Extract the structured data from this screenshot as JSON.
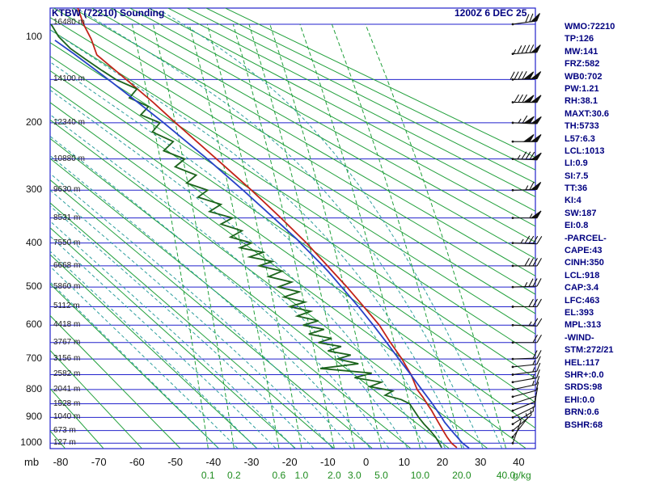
{
  "header": {
    "title": "KTBW (72210) Sounding",
    "datetime": "1200Z 6 DEC 25"
  },
  "stats_panel": {
    "lines": [
      "WMO:72210",
      "TP:126",
      "MW:141",
      "FRZ:582",
      "WB0:702",
      "PW:1.21",
      "RH:38.1",
      "MAXT:30.6",
      "TH:5733",
      "L57:6.3",
      "LCL:1013",
      "LI:0.9",
      "SI:7.5",
      "TT:36",
      "KI:4",
      "SW:187",
      "EI:0.8",
      "-PARCEL-",
      "CAPE:43",
      "CINH:350",
      "LCL:918",
      "CAP:3.4",
      "LFC:463",
      "EL:393",
      "MPL:313",
      "-WIND-",
      "STM:272/21",
      "HEL:117",
      "SHR+:0.0",
      "SRDS:98",
      "EHI:0.0",
      "BRN:0.6",
      "BSHR:68"
    ]
  },
  "axis_labels": {
    "pressure_unit": "mb",
    "mixing_unit": "g/kg"
  },
  "chart_data": {
    "type": "line",
    "diagram": "stuve-sounding",
    "title": "KTBW (72210) Sounding",
    "time": "1200Z 6 DEC 25",
    "axes": {
      "pressure_ticks_mb": [
        100,
        200,
        300,
        400,
        500,
        600,
        700,
        800,
        900,
        1000
      ],
      "pressure_gridlines_mb": [
        100,
        150,
        200,
        250,
        300,
        350,
        400,
        450,
        500,
        550,
        600,
        650,
        700,
        750,
        800,
        850,
        900,
        950,
        1000
      ],
      "temp_ticks_c": [
        -80,
        -70,
        -60,
        -50,
        -40,
        -30,
        -20,
        -10,
        0,
        10,
        20,
        30,
        40
      ],
      "pressure_range_mb": [
        87,
        1020
      ],
      "temp_range_c": [
        -83,
        44
      ],
      "heights": [
        {
          "p": 100,
          "label": "16480 m"
        },
        {
          "p": 150,
          "label": "14100 m"
        },
        {
          "p": 200,
          "label": "12340 m"
        },
        {
          "p": 250,
          "label": "10880 m"
        },
        {
          "p": 300,
          "label": "9630 m"
        },
        {
          "p": 350,
          "label": "8531 m"
        },
        {
          "p": 400,
          "label": "7550 m"
        },
        {
          "p": 450,
          "label": "6668 m"
        },
        {
          "p": 500,
          "label": "5860 m"
        },
        {
          "p": 550,
          "label": "5112 m"
        },
        {
          "p": 600,
          "label": "4418 m"
        },
        {
          "p": 650,
          "label": "3767 m"
        },
        {
          "p": 700,
          "label": "3156 m"
        },
        {
          "p": 750,
          "label": "2582 m"
        },
        {
          "p": 800,
          "label": "2041 m"
        },
        {
          "p": 850,
          "label": "1528 m"
        },
        {
          "p": 900,
          "label": "1040 m"
        },
        {
          "p": 950,
          "label": "673 m"
        },
        {
          "p": 1000,
          "label": "127 m"
        }
      ],
      "mixing_ratio_labels": [
        0.1,
        0.2,
        0.6,
        1.0,
        2.0,
        3.0,
        5.0,
        10.0,
        20.0,
        40.0
      ]
    },
    "isopleths": {
      "dry_adiabats_c": [
        -80,
        -70,
        -60,
        -50,
        -40,
        -30,
        -20,
        -10,
        0,
        10,
        20,
        30,
        40,
        50,
        60,
        70,
        80,
        90,
        100,
        110,
        120,
        130,
        140,
        150,
        160,
        170,
        180,
        190,
        200
      ],
      "moist_adiabats_c": [
        -40,
        -35,
        -30,
        -25,
        -20,
        -15,
        -10,
        -5,
        0,
        5,
        10,
        15,
        20,
        25,
        30,
        35
      ],
      "mixing_ratios_gkg": [
        0.1,
        0.2,
        0.6,
        1.0,
        2.0,
        3.0,
        5.0,
        10.0,
        20.0,
        40.0
      ]
    },
    "series": [
      {
        "name": "temperature",
        "color": "#c22218",
        "points": [
          [
            1018,
            23.8
          ],
          [
            1000,
            22.4
          ],
          [
            975,
            21.2
          ],
          [
            950,
            20.2
          ],
          [
            925,
            19.2
          ],
          [
            900,
            18.2
          ],
          [
            875,
            17.2
          ],
          [
            850,
            16.0
          ],
          [
            825,
            14.8
          ],
          [
            800,
            13.4
          ],
          [
            775,
            12.6
          ],
          [
            750,
            11.8
          ],
          [
            725,
            10.6
          ],
          [
            700,
            9.4
          ],
          [
            650,
            6.4
          ],
          [
            600,
            3.5
          ],
          [
            550,
            -0.6
          ],
          [
            500,
            -5.0
          ],
          [
            450,
            -10.1
          ],
          [
            400,
            -15.6
          ],
          [
            350,
            -22.3
          ],
          [
            300,
            -30.0
          ],
          [
            250,
            -39.2
          ],
          [
            200,
            -49.9
          ],
          [
            175,
            -55.8
          ],
          [
            150,
            -62.8
          ],
          [
            126,
            -70.5
          ],
          [
            112,
            -72.0
          ],
          [
            100,
            -74.0
          ],
          [
            88,
            -75.5
          ]
        ]
      },
      {
        "name": "dewpoint",
        "color": "#1c641c",
        "points": [
          [
            1018,
            19.8
          ],
          [
            1000,
            19.2
          ],
          [
            975,
            18.2
          ],
          [
            950,
            16.8
          ],
          [
            925,
            15.2
          ],
          [
            900,
            13.8
          ],
          [
            875,
            12.6
          ],
          [
            850,
            11.4
          ],
          [
            835,
            9.2
          ],
          [
            820,
            5.0
          ],
          [
            805,
            7.0
          ],
          [
            790,
            1.0
          ],
          [
            775,
            4.0
          ],
          [
            760,
            -3.0
          ],
          [
            745,
            1.5
          ],
          [
            730,
            -12.0
          ],
          [
            715,
            -2.0
          ],
          [
            700,
            -7.5
          ],
          [
            688,
            -4.0
          ],
          [
            675,
            -10.0
          ],
          [
            662,
            -6.5
          ],
          [
            650,
            -12.5
          ],
          [
            638,
            -9.0
          ],
          [
            625,
            -15.0
          ],
          [
            612,
            -11.0
          ],
          [
            600,
            -16.5
          ],
          [
            588,
            -12.5
          ],
          [
            575,
            -18.0
          ],
          [
            562,
            -14.5
          ],
          [
            550,
            -20.0
          ],
          [
            538,
            -16.0
          ],
          [
            525,
            -21.5
          ],
          [
            512,
            -17.5
          ],
          [
            500,
            -23.0
          ],
          [
            488,
            -19.5
          ],
          [
            475,
            -25.5
          ],
          [
            462,
            -22.0
          ],
          [
            450,
            -28.0
          ],
          [
            440,
            -24.5
          ],
          [
            430,
            -30.5
          ],
          [
            420,
            -27.0
          ],
          [
            410,
            -33.0
          ],
          [
            400,
            -30.0
          ],
          [
            388,
            -35.5
          ],
          [
            375,
            -32.5
          ],
          [
            362,
            -38.0
          ],
          [
            350,
            -35.0
          ],
          [
            338,
            -41.0
          ],
          [
            325,
            -38.0
          ],
          [
            312,
            -44.0
          ],
          [
            300,
            -41.5
          ],
          [
            288,
            -47.0
          ],
          [
            275,
            -44.5
          ],
          [
            262,
            -50.0
          ],
          [
            250,
            -47.5
          ],
          [
            238,
            -53.0
          ],
          [
            225,
            -50.5
          ],
          [
            212,
            -56.0
          ],
          [
            200,
            -54.0
          ],
          [
            190,
            -59.0
          ],
          [
            180,
            -57.0
          ],
          [
            170,
            -62.0
          ],
          [
            160,
            -60.0
          ],
          [
            150,
            -65.5
          ],
          [
            140,
            -69.5
          ],
          [
            130,
            -73.5
          ],
          [
            120,
            -77.5
          ],
          [
            110,
            -80.5
          ],
          [
            100,
            -82.5
          ]
        ]
      },
      {
        "name": "parcel",
        "color": "#2742c8",
        "points": [
          [
            1020,
            27.0
          ],
          [
            1000,
            25.3
          ],
          [
            950,
            22.4
          ],
          [
            918,
            20.6
          ],
          [
            900,
            19.8
          ],
          [
            850,
            17.4
          ],
          [
            800,
            14.6
          ],
          [
            750,
            11.7
          ],
          [
            700,
            8.6
          ],
          [
            650,
            5.4
          ],
          [
            600,
            1.9
          ],
          [
            550,
            -2.0
          ],
          [
            500,
            -6.4
          ],
          [
            463,
            -9.9
          ],
          [
            450,
            -11.3
          ],
          [
            400,
            -17.2
          ],
          [
            393,
            -18.0
          ],
          [
            350,
            -24.2
          ],
          [
            300,
            -32.2
          ],
          [
            250,
            -41.6
          ],
          [
            200,
            -53.0
          ],
          [
            175,
            -59.8
          ],
          [
            150,
            -67.5
          ],
          [
            125,
            -76.5
          ],
          [
            113,
            -81.5
          ]
        ]
      }
    ],
    "winds_p_dir_kt": [
      [
        100,
        262,
        70
      ],
      [
        125,
        266,
        95
      ],
      [
        150,
        268,
        140
      ],
      [
        175,
        270,
        130
      ],
      [
        200,
        272,
        115
      ],
      [
        225,
        270,
        100
      ],
      [
        250,
        272,
        85
      ],
      [
        300,
        268,
        65
      ],
      [
        350,
        270,
        55
      ],
      [
        400,
        272,
        45
      ],
      [
        450,
        270,
        40
      ],
      [
        500,
        268,
        35
      ],
      [
        550,
        270,
        30
      ],
      [
        600,
        272,
        25
      ],
      [
        650,
        270,
        22
      ],
      [
        700,
        268,
        20
      ],
      [
        725,
        264,
        18
      ],
      [
        750,
        262,
        18
      ],
      [
        775,
        260,
        15
      ],
      [
        800,
        258,
        15
      ],
      [
        825,
        255,
        12
      ],
      [
        850,
        252,
        12
      ],
      [
        875,
        248,
        10
      ],
      [
        900,
        244,
        10
      ],
      [
        925,
        238,
        8
      ],
      [
        950,
        230,
        8
      ],
      [
        975,
        218,
        5
      ],
      [
        1000,
        200,
        5
      ]
    ],
    "colors": {
      "grid": "#2222cc",
      "frame": "#2222cc",
      "dry_adiabat": "#22a03c",
      "moist_adiabat": "#2d9e9e",
      "mixing_ratio": "#22a03c",
      "wind_barb": "#111111",
      "text_navy": "#000080",
      "axis_text": "#111111",
      "green_text": "#1e8c1e",
      "height_text": "#222222"
    }
  }
}
